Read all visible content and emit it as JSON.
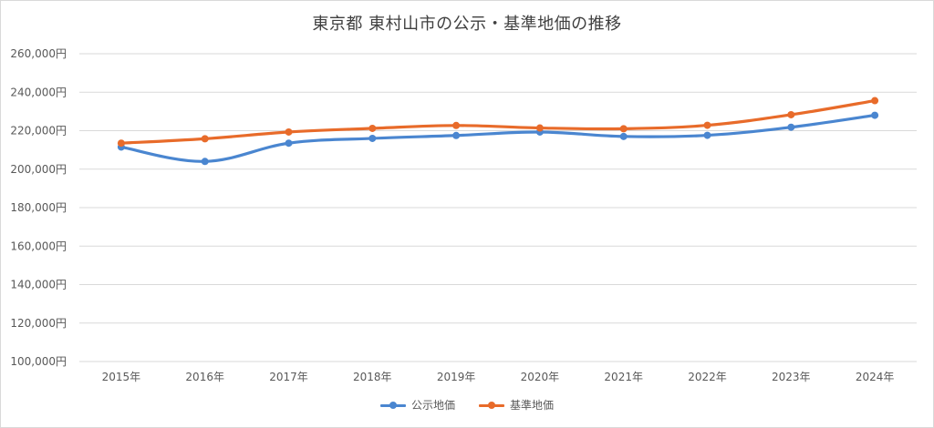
{
  "chart_data": {
    "type": "line",
    "title": "東京都 東村山市の公示・基準地価の推移",
    "categories": [
      "2015年",
      "2016年",
      "2017年",
      "2018年",
      "2019年",
      "2020年",
      "2021年",
      "2022年",
      "2023年",
      "2024年"
    ],
    "y_tick_labels": [
      "100,000円",
      "120,000円",
      "140,000円",
      "160,000円",
      "180,000円",
      "200,000円",
      "220,000円",
      "240,000円",
      "260,000円"
    ],
    "ylim": [
      100000,
      260000
    ],
    "y_step": 20000,
    "grid": true,
    "legend_position": "bottom",
    "series": [
      {
        "name": "公示地価",
        "color": "#4a86d0",
        "values": [
          211500,
          204000,
          213500,
          216000,
          217500,
          219300,
          217000,
          217600,
          221800,
          228000
        ]
      },
      {
        "name": "基準地価",
        "color": "#e86b2a",
        "values": [
          213500,
          215800,
          219300,
          221200,
          222700,
          221400,
          221000,
          222800,
          228300,
          235600
        ]
      }
    ]
  }
}
